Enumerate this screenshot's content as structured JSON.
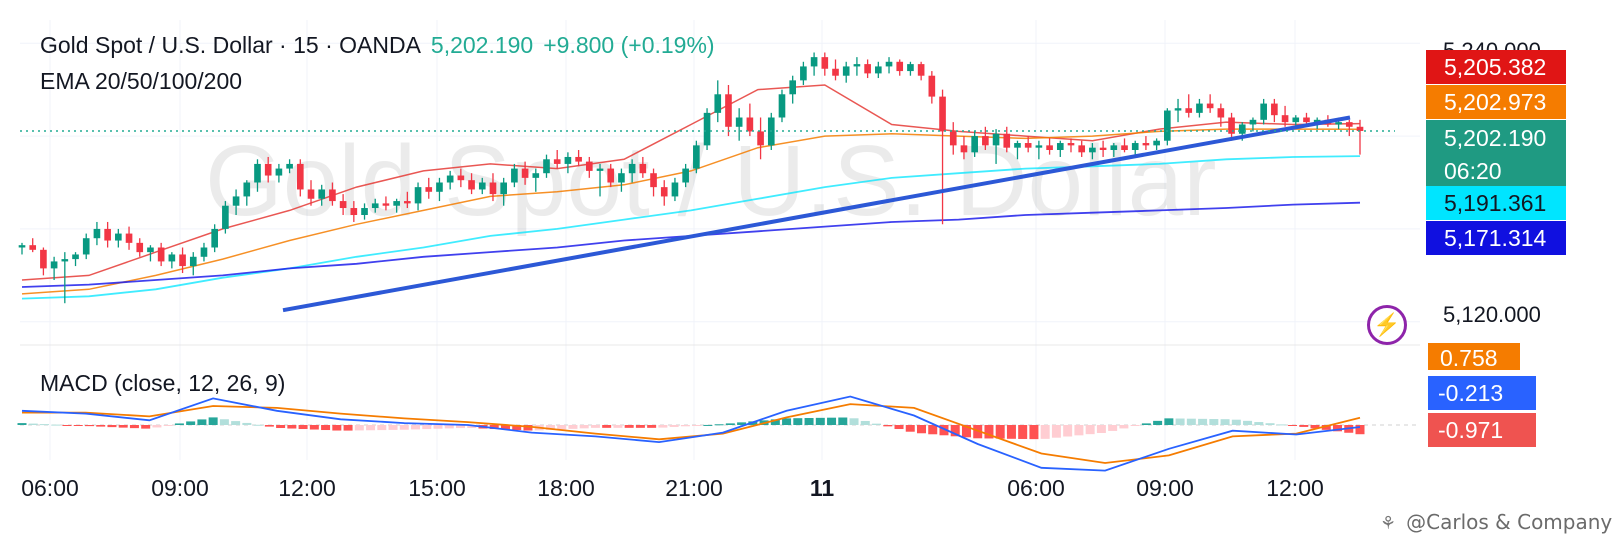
{
  "header": {
    "symbol": "Gold Spot / U.S. Dollar · 15 · OANDA",
    "last": "5,202.190",
    "change": "+9.800 (+0.19%)",
    "indicator": "EMA 20/50/100/200"
  },
  "watermark_text": "Gold Spot / U.S. Dollar",
  "macd": {
    "label": "MACD (close, 12, 26, 9)",
    "tags": {
      "signal": "0.758",
      "macd": "-0.213",
      "hist": "-0.971"
    }
  },
  "price_tags": {
    "top_partial": "5,240.000",
    "ema20": "5,205.382",
    "ema50": "5,202.973",
    "last_price": "5,202.190",
    "countdown": "06:20",
    "ema100": "5,191.361",
    "ema200": "5,171.314",
    "axis_level": "5,120.000"
  },
  "colors": {
    "ema20": "#e53935",
    "ema50": "#f57c00",
    "ema100": "#00e5ff",
    "ema200": "#1e1eeb",
    "last": "#22ab94",
    "macd_signal": "#f57c00",
    "macd_line": "#2962ff",
    "macd_hist": "#f05350"
  },
  "x_axis_labels": [
    "06:00",
    "09:00",
    "12:00",
    "15:00",
    "18:00",
    "21:00",
    "11",
    "06:00",
    "09:00",
    "12:00"
  ],
  "credit": "@Carlos & Company",
  "chart_data": {
    "type": "candlestick",
    "interval": "15",
    "x_ticks": [
      "06:00",
      "09:00",
      "12:00",
      "15:00",
      "18:00",
      "21:00",
      "11",
      "06:00",
      "09:00",
      "12:00"
    ],
    "ylim": [
      5110,
      5250
    ],
    "last_price": 5202.19,
    "candles_ohlc": [
      [
        5152,
        5154,
        5149,
        5153
      ],
      [
        5153,
        5156,
        5150,
        5151
      ],
      [
        5151,
        5152,
        5140,
        5143
      ],
      [
        5143,
        5148,
        5138,
        5146
      ],
      [
        5146,
        5150,
        5128,
        5147
      ],
      [
        5147,
        5150,
        5144,
        5149
      ],
      [
        5149,
        5158,
        5147,
        5156
      ],
      [
        5156,
        5163,
        5153,
        5160
      ],
      [
        5160,
        5163,
        5152,
        5155
      ],
      [
        5155,
        5160,
        5152,
        5158
      ],
      [
        5158,
        5161,
        5151,
        5154
      ],
      [
        5154,
        5156,
        5148,
        5150
      ],
      [
        5150,
        5153,
        5146,
        5152
      ],
      [
        5152,
        5154,
        5144,
        5146
      ],
      [
        5146,
        5150,
        5143,
        5149
      ],
      [
        5149,
        5152,
        5141,
        5144
      ],
      [
        5144,
        5150,
        5140,
        5148
      ],
      [
        5148,
        5154,
        5146,
        5152
      ],
      [
        5152,
        5162,
        5150,
        5160
      ],
      [
        5160,
        5172,
        5158,
        5170
      ],
      [
        5170,
        5177,
        5166,
        5174
      ],
      [
        5174,
        5181,
        5170,
        5180
      ],
      [
        5180,
        5190,
        5176,
        5188
      ],
      [
        5188,
        5191,
        5180,
        5183
      ],
      [
        5183,
        5188,
        5180,
        5186
      ],
      [
        5186,
        5190,
        5184,
        5188
      ],
      [
        5188,
        5190,
        5174,
        5177
      ],
      [
        5177,
        5181,
        5170,
        5173
      ],
      [
        5173,
        5179,
        5170,
        5177
      ],
      [
        5177,
        5180,
        5170,
        5172
      ],
      [
        5172,
        5175,
        5166,
        5169
      ],
      [
        5169,
        5172,
        5163,
        5166
      ],
      [
        5166,
        5171,
        5164,
        5169
      ],
      [
        5169,
        5173,
        5167,
        5171
      ],
      [
        5171,
        5174,
        5168,
        5170
      ],
      [
        5170,
        5173,
        5167,
        5172
      ],
      [
        5172,
        5176,
        5169,
        5171
      ],
      [
        5171,
        5180,
        5168,
        5178
      ],
      [
        5178,
        5182,
        5173,
        5176
      ],
      [
        5176,
        5182,
        5172,
        5180
      ],
      [
        5180,
        5185,
        5177,
        5183
      ],
      [
        5183,
        5186,
        5178,
        5181
      ],
      [
        5181,
        5184,
        5175,
        5177
      ],
      [
        5177,
        5182,
        5175,
        5180
      ],
      [
        5180,
        5184,
        5172,
        5175
      ],
      [
        5175,
        5182,
        5170,
        5180
      ],
      [
        5180,
        5188,
        5178,
        5186
      ],
      [
        5186,
        5189,
        5179,
        5182
      ],
      [
        5182,
        5186,
        5176,
        5184
      ],
      [
        5184,
        5192,
        5182,
        5190
      ],
      [
        5190,
        5194,
        5186,
        5188
      ],
      [
        5188,
        5193,
        5184,
        5191
      ],
      [
        5191,
        5194,
        5187,
        5189
      ],
      [
        5189,
        5191,
        5182,
        5185
      ],
      [
        5185,
        5188,
        5174,
        5186
      ],
      [
        5186,
        5188,
        5178,
        5180
      ],
      [
        5180,
        5186,
        5176,
        5184
      ],
      [
        5184,
        5190,
        5180,
        5188
      ],
      [
        5188,
        5191,
        5182,
        5184
      ],
      [
        5184,
        5186,
        5174,
        5178
      ],
      [
        5178,
        5181,
        5170,
        5174
      ],
      [
        5174,
        5182,
        5172,
        5180
      ],
      [
        5180,
        5188,
        5178,
        5186
      ],
      [
        5186,
        5198,
        5184,
        5196
      ],
      [
        5196,
        5212,
        5194,
        5210
      ],
      [
        5210,
        5224,
        5206,
        5218
      ],
      [
        5218,
        5222,
        5200,
        5204
      ],
      [
        5204,
        5212,
        5198,
        5208
      ],
      [
        5208,
        5214,
        5200,
        5202
      ],
      [
        5202,
        5208,
        5190,
        5196
      ],
      [
        5196,
        5210,
        5194,
        5208
      ],
      [
        5208,
        5220,
        5206,
        5218
      ],
      [
        5218,
        5226,
        5214,
        5224
      ],
      [
        5224,
        5232,
        5222,
        5230
      ],
      [
        5230,
        5236,
        5226,
        5234
      ],
      [
        5234,
        5236,
        5226,
        5229
      ],
      [
        5229,
        5233,
        5224,
        5226
      ],
      [
        5226,
        5232,
        5223,
        5230
      ],
      [
        5230,
        5234,
        5226,
        5231
      ],
      [
        5231,
        5233,
        5225,
        5227
      ],
      [
        5227,
        5232,
        5225,
        5230
      ],
      [
        5230,
        5234,
        5227,
        5232
      ],
      [
        5232,
        5233,
        5226,
        5228
      ],
      [
        5228,
        5232,
        5226,
        5231
      ],
      [
        5231,
        5232,
        5224,
        5226
      ],
      [
        5226,
        5228,
        5214,
        5217
      ],
      [
        5217,
        5220,
        5162,
        5202
      ],
      [
        5202,
        5206,
        5192,
        5196
      ],
      [
        5196,
        5200,
        5190,
        5193
      ],
      [
        5193,
        5202,
        5191,
        5200
      ],
      [
        5200,
        5204,
        5194,
        5196
      ],
      [
        5196,
        5203,
        5188,
        5201
      ],
      [
        5201,
        5204,
        5193,
        5195
      ],
      [
        5195,
        5198,
        5190,
        5197
      ],
      [
        5197,
        5200,
        5193,
        5195
      ],
      [
        5195,
        5198,
        5190,
        5196
      ],
      [
        5196,
        5199,
        5192,
        5194
      ],
      [
        5194,
        5198,
        5191,
        5197
      ],
      [
        5197,
        5199,
        5193,
        5196
      ],
      [
        5196,
        5198,
        5191,
        5193
      ],
      [
        5193,
        5197,
        5190,
        5195
      ],
      [
        5195,
        5198,
        5191,
        5194
      ],
      [
        5194,
        5197,
        5191,
        5196
      ],
      [
        5196,
        5199,
        5193,
        5194
      ],
      [
        5194,
        5198,
        5192,
        5197
      ],
      [
        5197,
        5200,
        5194,
        5196
      ],
      [
        5196,
        5199,
        5194,
        5198
      ],
      [
        5198,
        5212,
        5196,
        5211
      ],
      [
        5211,
        5216,
        5206,
        5212
      ],
      [
        5212,
        5218,
        5208,
        5210
      ],
      [
        5210,
        5216,
        5208,
        5214
      ],
      [
        5214,
        5218,
        5210,
        5212
      ],
      [
        5212,
        5214,
        5204,
        5208
      ],
      [
        5208,
        5210,
        5198,
        5201
      ],
      [
        5201,
        5206,
        5198,
        5205
      ],
      [
        5205,
        5208,
        5202,
        5207
      ],
      [
        5207,
        5216,
        5205,
        5214
      ],
      [
        5214,
        5216,
        5206,
        5209
      ],
      [
        5209,
        5213,
        5204,
        5206
      ],
      [
        5206,
        5209,
        5203,
        5208
      ],
      [
        5208,
        5210,
        5204,
        5206
      ],
      [
        5206,
        5208,
        5203,
        5207
      ],
      [
        5207,
        5209,
        5204,
        5205
      ],
      [
        5205,
        5208,
        5203,
        5206
      ],
      [
        5206,
        5207,
        5200,
        5204
      ],
      [
        5204,
        5207,
        5192,
        5202.19
      ]
    ],
    "series": [
      {
        "name": "EMA 20",
        "values": [
          5138,
          5140,
          5150,
          5160,
          5168,
          5178,
          5185,
          5188,
          5186,
          5190,
          5205,
          5220,
          5222,
          5205,
          5202,
          5200,
          5198,
          5203,
          5206,
          5205,
          5205.38
        ]
      },
      {
        "name": "EMA 50",
        "values": [
          5132,
          5134,
          5140,
          5147,
          5155,
          5162,
          5168,
          5174,
          5176,
          5179,
          5185,
          5195,
          5200,
          5201,
          5200,
          5199,
          5200,
          5202,
          5203,
          5203,
          5202.97
        ]
      },
      {
        "name": "EMA 100",
        "values": [
          5130,
          5131,
          5134,
          5139,
          5143,
          5148,
          5152,
          5157,
          5160,
          5164,
          5168,
          5173,
          5178,
          5182,
          5184,
          5186,
          5187,
          5188,
          5190,
          5191,
          5191.36
        ]
      },
      {
        "name": "EMA 200",
        "values": [
          5135,
          5136,
          5138,
          5140,
          5143,
          5145,
          5148,
          5150,
          5152,
          5155,
          5157,
          5159,
          5161,
          5163,
          5164,
          5166,
          5167,
          5168,
          5169,
          5170.5,
          5171.31
        ]
      }
    ],
    "trendline": {
      "from": 5125,
      "to": 5208
    },
    "macd": {
      "label": "MACD (close, 12, 26, 9)",
      "macd_line": [
        1.5,
        1.2,
        0.5,
        2.8,
        1.5,
        0.6,
        0.2,
        0.0,
        -0.8,
        -1.2,
        -1.8,
        -0.8,
        1.5,
        3.0,
        1.0,
        -2.0,
        -4.5,
        -4.8,
        -2.5,
        -0.6,
        -1.0,
        -0.213
      ],
      "signal_line": [
        1.3,
        1.3,
        0.9,
        2.0,
        1.8,
        1.2,
        0.7,
        0.3,
        -0.2,
        -0.9,
        -1.5,
        -0.9,
        0.8,
        2.2,
        1.8,
        -0.6,
        -3.0,
        -4.0,
        -3.2,
        -1.2,
        -0.9,
        0.758
      ],
      "last_hist": -0.971
    }
  }
}
